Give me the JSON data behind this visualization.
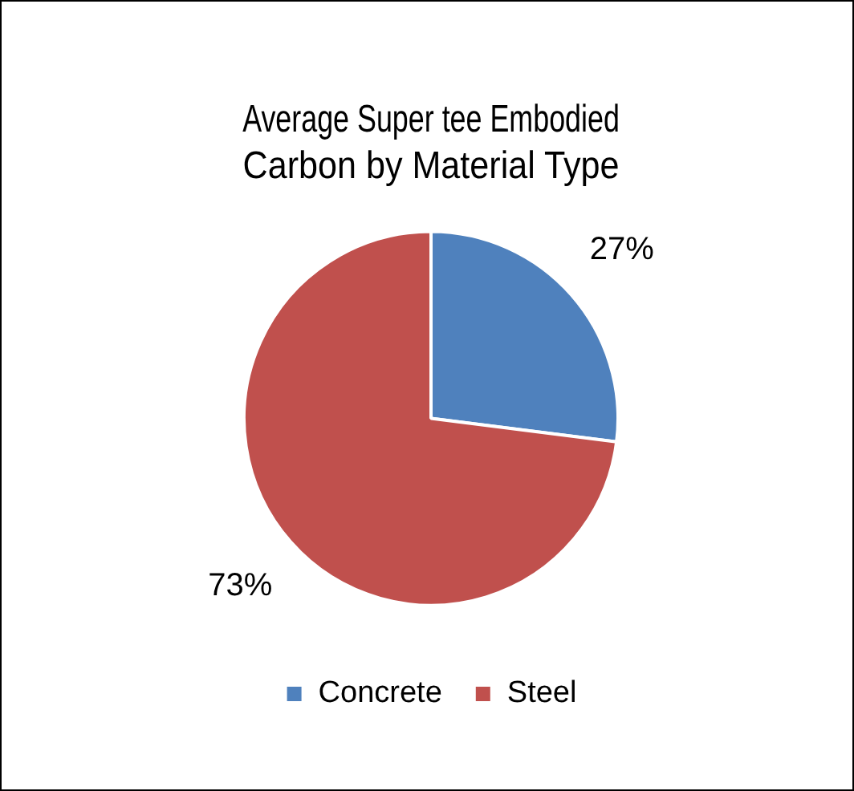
{
  "chart_data": {
    "type": "pie",
    "title": "Average Super tee Embodied Carbon by Material Type",
    "categories": [
      "Concrete",
      "Steel"
    ],
    "values": [
      27,
      73
    ],
    "value_labels": [
      "27%",
      "73%"
    ],
    "colors": [
      "#4f81bd",
      "#c0504d"
    ],
    "legend": "bottom"
  }
}
